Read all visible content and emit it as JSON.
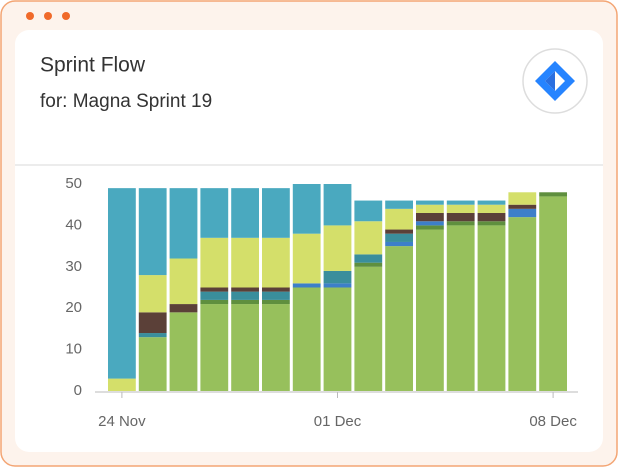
{
  "chart_data": {
    "type": "stacked-bar",
    "title": "Sprint Flow",
    "subtitle": "for: Magna Sprint 19",
    "categories": [
      "24 Nov",
      null,
      null,
      null,
      null,
      null,
      null,
      "01 Dec",
      null,
      null,
      null,
      null,
      null,
      null,
      "08 Dec"
    ],
    "series": [
      {
        "color": "#97c05c",
        "values": [
          0,
          13,
          19,
          21,
          21,
          21,
          25,
          25,
          30,
          35,
          39,
          40,
          40,
          42,
          47
        ]
      },
      {
        "color": "#5f8f3e",
        "values": [
          0,
          0,
          0,
          1,
          1,
          1,
          0,
          0,
          1,
          0,
          1,
          1,
          1,
          0,
          1
        ]
      },
      {
        "color": "#3d7fc9",
        "values": [
          0,
          0,
          0,
          0,
          0,
          0,
          1,
          1,
          0,
          1,
          1,
          0,
          0,
          2,
          0
        ]
      },
      {
        "color": "#3a8e9c",
        "values": [
          0,
          1,
          0,
          2,
          2,
          2,
          0,
          3,
          2,
          2,
          0,
          0,
          0,
          0,
          0
        ]
      },
      {
        "color": "#5b4038",
        "values": [
          0,
          5,
          2,
          1,
          1,
          1,
          0,
          0,
          0,
          1,
          2,
          2,
          2,
          1,
          0
        ]
      },
      {
        "color": "#d4df6a",
        "values": [
          3,
          9,
          11,
          12,
          12,
          12,
          12,
          11,
          8,
          5,
          2,
          2,
          2,
          3,
          0
        ]
      },
      {
        "color": "#4aa9bf",
        "values": [
          46,
          21,
          17,
          12,
          12,
          12,
          12,
          10,
          5,
          2,
          1,
          1,
          1,
          0,
          0
        ]
      }
    ],
    "ylim": [
      0,
      50
    ],
    "yticks": [
      0,
      10,
      20,
      30,
      40,
      50
    ],
    "grid": false
  }
}
